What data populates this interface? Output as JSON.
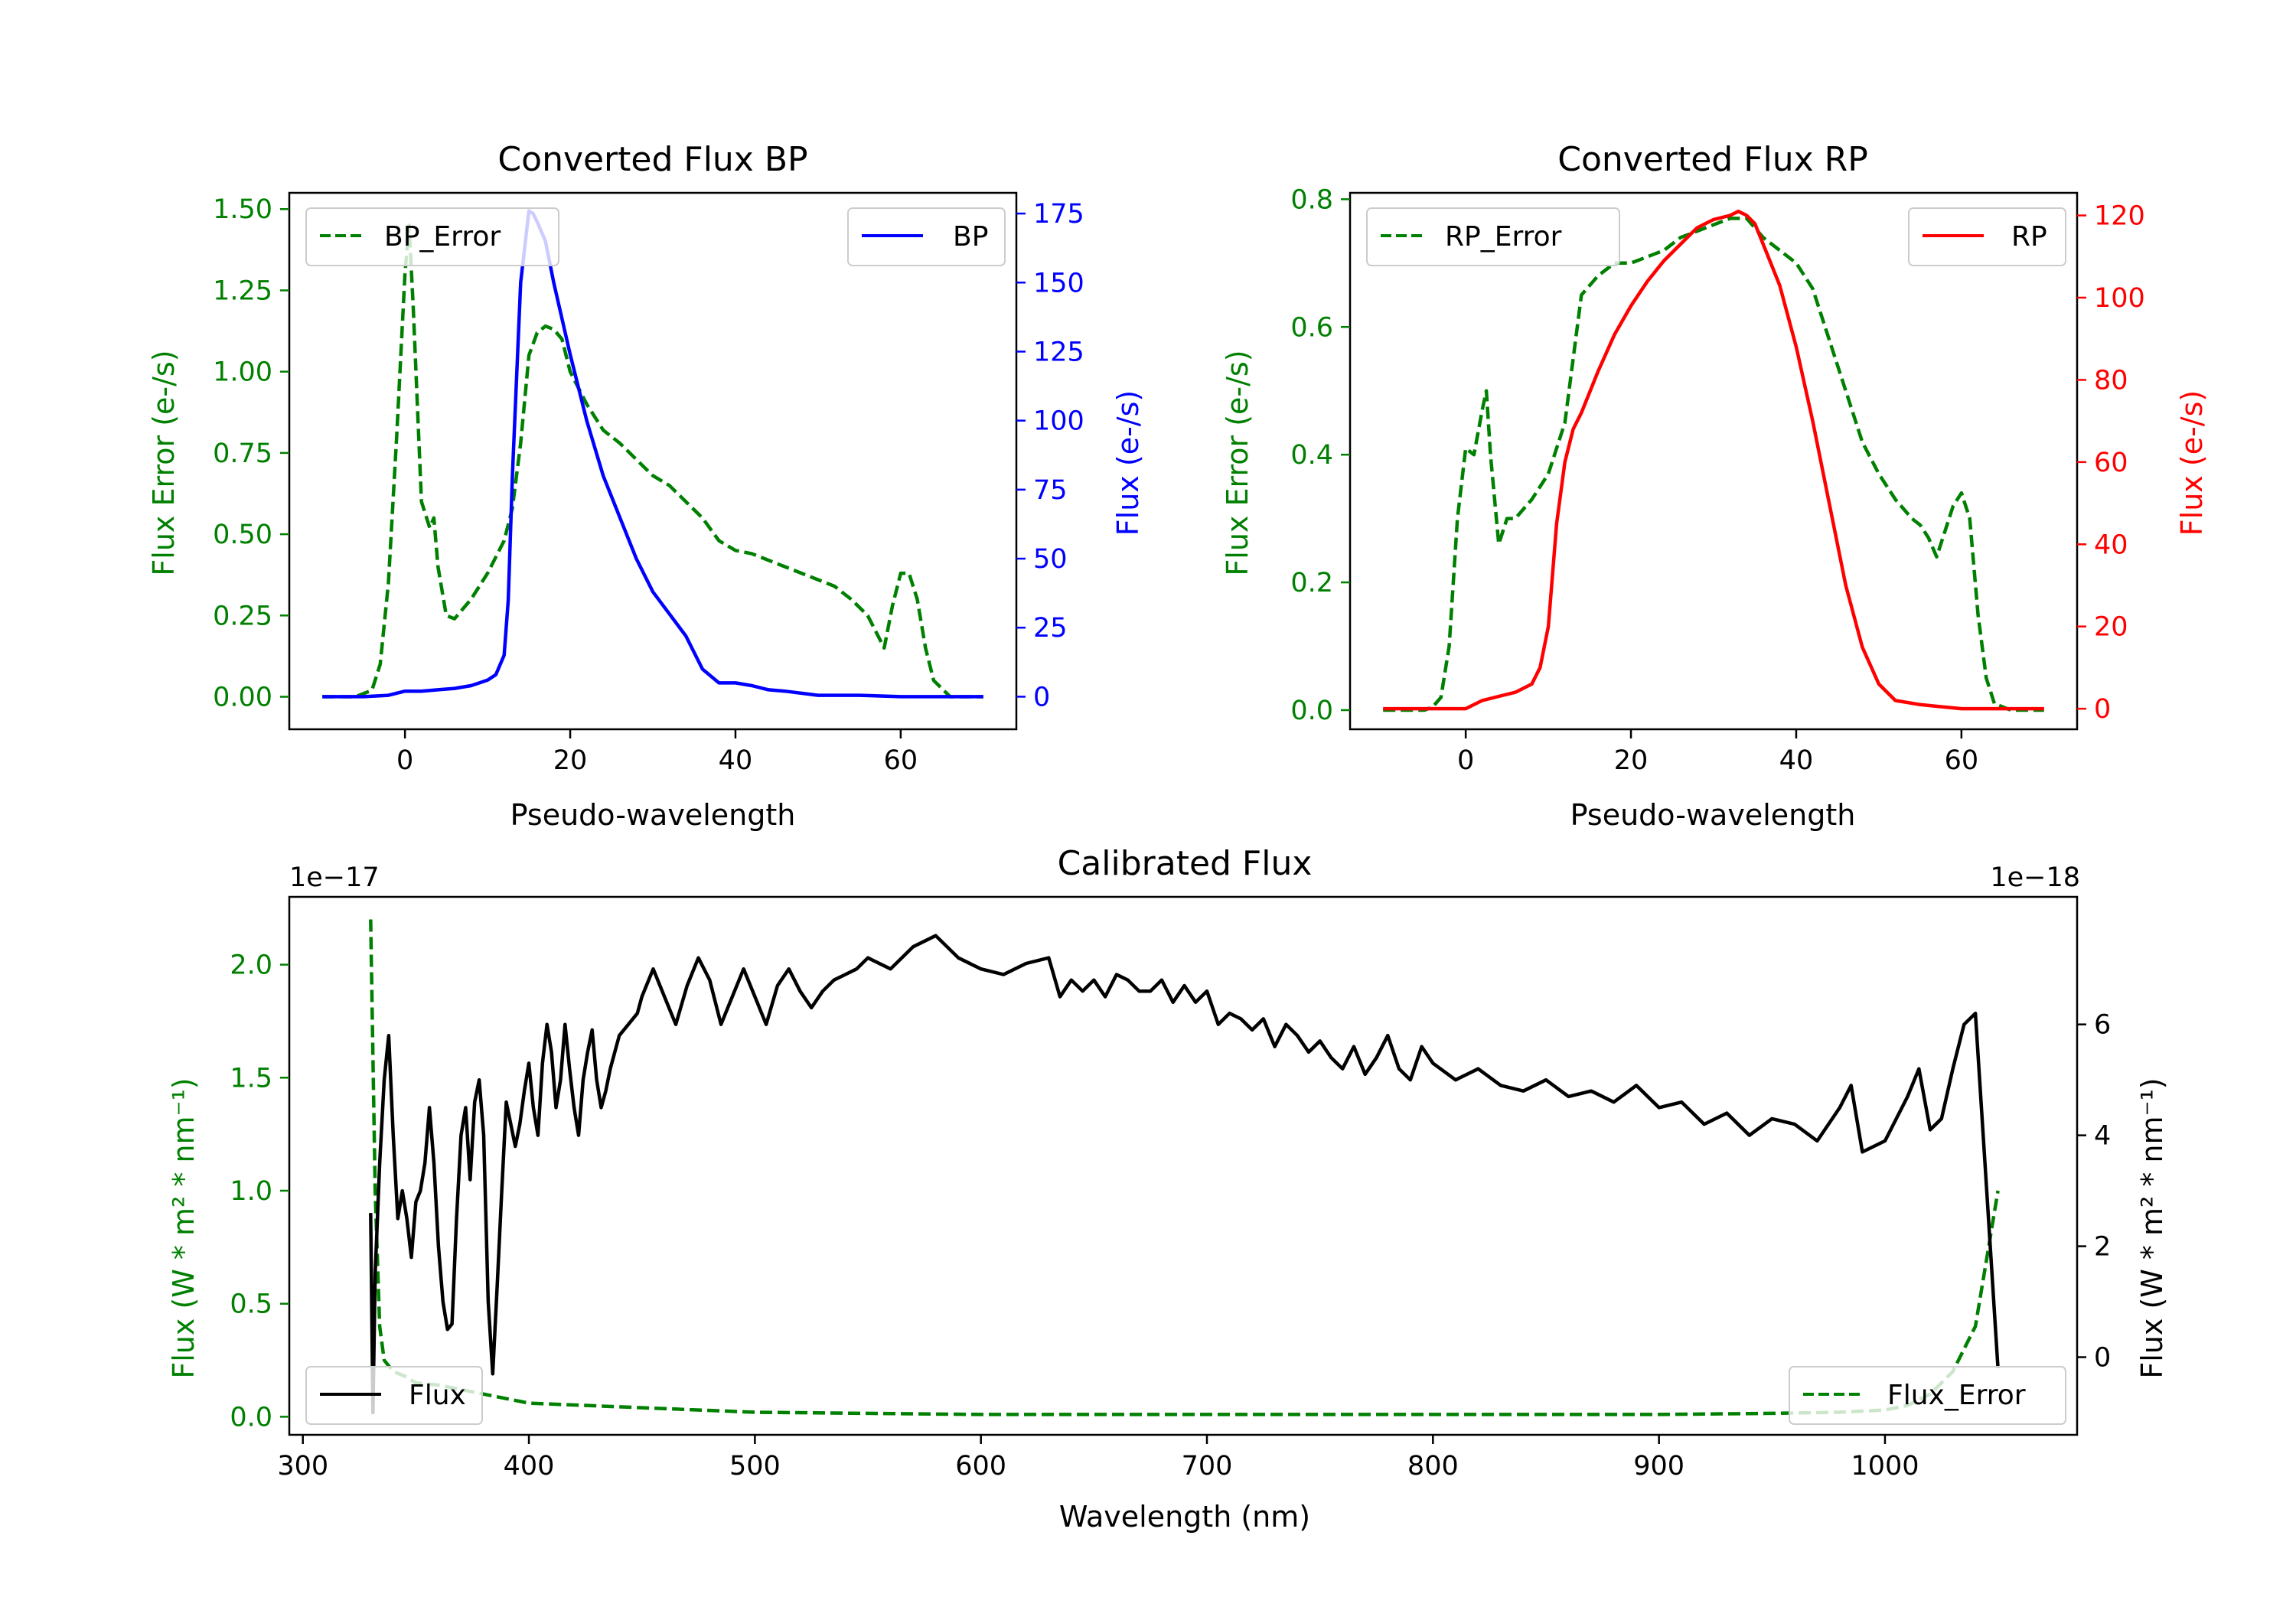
{
  "chart_data": [
    {
      "type": "line",
      "title": "Converted Flux BP",
      "xlabel": "Pseudo-wavelength",
      "ylabel": "Flux Error (e-/s)",
      "ylabel_right": "Flux (e-/s)",
      "xlim": [
        -14,
        74
      ],
      "xticks": [
        0,
        20,
        40,
        60
      ],
      "ylim": [
        -0.1,
        1.55
      ],
      "yticks": [
        0.0,
        0.25,
        0.5,
        0.75,
        1.0,
        1.25,
        1.5
      ],
      "ylim_right": [
        -11.8,
        182.5
      ],
      "yticks_right": [
        0,
        25,
        50,
        75,
        100,
        125,
        150,
        175
      ],
      "left_color": "#008000",
      "right_color": "#0000ff",
      "series": [
        {
          "name": "BP_Error",
          "axis": "left",
          "style": "dashed",
          "color": "#008000",
          "x": [
            -10,
            -6,
            -4,
            -3,
            -2,
            -1,
            0,
            0.5,
            1,
            2,
            3,
            3.5,
            4,
            5,
            6,
            8,
            10,
            12,
            13,
            14,
            15,
            16,
            17,
            18,
            19,
            20,
            22,
            24,
            26,
            28,
            30,
            32,
            34,
            36,
            38,
            40,
            42,
            44,
            46,
            48,
            50,
            52,
            54,
            56,
            57,
            58,
            59,
            60,
            61,
            62,
            63,
            64,
            66,
            70
          ],
          "values": [
            0,
            0,
            0.02,
            0.1,
            0.35,
            0.8,
            1.3,
            1.45,
            1.2,
            0.6,
            0.52,
            0.55,
            0.4,
            0.25,
            0.24,
            0.3,
            0.38,
            0.48,
            0.58,
            0.78,
            1.05,
            1.12,
            1.14,
            1.13,
            1.1,
            1.0,
            0.9,
            0.82,
            0.78,
            0.73,
            0.68,
            0.65,
            0.6,
            0.55,
            0.48,
            0.45,
            0.44,
            0.42,
            0.4,
            0.38,
            0.36,
            0.34,
            0.3,
            0.25,
            0.2,
            0.15,
            0.28,
            0.38,
            0.38,
            0.3,
            0.15,
            0.05,
            0,
            0
          ]
        },
        {
          "name": "BP",
          "axis": "right",
          "style": "solid",
          "color": "#0000ff",
          "x": [
            -10,
            -5,
            -2,
            0,
            2,
            4,
            6,
            8,
            10,
            11,
            12,
            12.5,
            13,
            14,
            15,
            15.5,
            16,
            17,
            18,
            20,
            22,
            24,
            26,
            28,
            30,
            32,
            34,
            36,
            38,
            40,
            42,
            44,
            46,
            50,
            55,
            60,
            65,
            70
          ],
          "values": [
            0,
            0,
            0.5,
            2,
            2,
            2.5,
            3,
            4,
            6,
            8,
            15,
            35,
            80,
            150,
            176,
            175,
            172,
            165,
            150,
            124,
            100,
            80,
            65,
            50,
            38,
            30,
            22,
            10,
            5,
            5,
            4,
            2.5,
            2,
            0.5,
            0.5,
            0,
            0,
            0
          ]
        }
      ]
    },
    {
      "type": "line",
      "title": "Converted Flux RP",
      "xlabel": "Pseudo-wavelength",
      "ylabel": "Flux Error (e-/s)",
      "ylabel_right": "Flux (e-/s)",
      "xlim": [
        -14,
        74
      ],
      "xticks": [
        0,
        20,
        40,
        60
      ],
      "ylim": [
        -0.03,
        0.81
      ],
      "yticks": [
        0.0,
        0.2,
        0.4,
        0.6,
        0.8
      ],
      "ylim_right": [
        -5,
        125.5
      ],
      "yticks_right": [
        0,
        20,
        40,
        60,
        80,
        100,
        120
      ],
      "left_color": "#008000",
      "right_color": "#ff0000",
      "series": [
        {
          "name": "RP_Error",
          "axis": "right_none",
          "style": "dashed",
          "color": "#008000",
          "x": [
            -10,
            -5,
            -4,
            -3,
            -2,
            -1,
            0,
            1,
            2,
            2.5,
            3,
            4,
            5,
            6,
            8,
            10,
            12,
            13,
            14,
            16,
            18,
            20,
            22,
            24,
            26,
            28,
            30,
            32,
            34,
            36,
            38,
            40,
            42,
            44,
            46,
            48,
            50,
            52,
            54,
            55,
            56,
            57,
            58,
            59,
            60,
            61,
            62,
            63,
            64,
            66,
            70
          ],
          "values": [
            0,
            0,
            0.005,
            0.02,
            0.1,
            0.3,
            0.41,
            0.4,
            0.47,
            0.5,
            0.4,
            0.26,
            0.3,
            0.3,
            0.33,
            0.37,
            0.45,
            0.55,
            0.65,
            0.68,
            0.7,
            0.7,
            0.71,
            0.72,
            0.74,
            0.75,
            0.76,
            0.77,
            0.77,
            0.74,
            0.72,
            0.7,
            0.66,
            0.58,
            0.5,
            0.42,
            0.37,
            0.33,
            0.3,
            0.29,
            0.27,
            0.24,
            0.28,
            0.32,
            0.34,
            0.3,
            0.15,
            0.05,
            0.01,
            0,
            0
          ]
        },
        {
          "name": "RP",
          "axis": "right",
          "style": "solid",
          "color": "#ff0000",
          "x": [
            -10,
            -4,
            0,
            2,
            4,
            6,
            8,
            9,
            10,
            11,
            12,
            13,
            14,
            16,
            18,
            20,
            22,
            24,
            26,
            28,
            30,
            32,
            33,
            34,
            35,
            36,
            38,
            40,
            42,
            44,
            46,
            48,
            50,
            52,
            55,
            60,
            65,
            70
          ],
          "values": [
            0,
            0,
            0,
            2,
            3,
            4,
            6,
            10,
            20,
            45,
            60,
            68,
            72,
            82,
            91,
            98,
            104,
            109,
            113,
            117,
            119,
            120,
            121,
            120,
            118,
            113,
            103,
            88,
            70,
            50,
            30,
            15,
            6,
            2,
            1,
            0,
            0,
            0
          ]
        }
      ]
    },
    {
      "type": "line",
      "title": "Calibrated Flux",
      "xlabel": "Wavelength (nm)",
      "ylabel": "Flux (W * m² * nm⁻¹)",
      "ylabel_right": "Flux (W * m² * nm⁻¹)",
      "exp_left": "1e−17",
      "exp_right": "1e−18",
      "xlim": [
        294,
        1085
      ],
      "xticks": [
        300,
        400,
        500,
        600,
        700,
        800,
        900,
        1000
      ],
      "ylim": [
        -0.08,
        2.3
      ],
      "yticks": [
        0.0,
        0.5,
        1.0,
        1.5,
        2.0
      ],
      "ylim_right": [
        -1.4,
        8.3
      ],
      "yticks_right": [
        0,
        2,
        4,
        6
      ],
      "left_color": "#008000",
      "right_color": "#000000",
      "series": [
        {
          "name": "Flux_Error",
          "axis": "left",
          "style": "dashed",
          "color": "#008000",
          "x": [
            330,
            332,
            334,
            336,
            340,
            345,
            350,
            360,
            370,
            380,
            390,
            400,
            450,
            500,
            600,
            700,
            800,
            900,
            950,
            980,
            1000,
            1010,
            1020,
            1030,
            1040,
            1045,
            1050
          ],
          "values": [
            2.2,
            1.0,
            0.4,
            0.25,
            0.2,
            0.18,
            0.15,
            0.14,
            0.12,
            0.1,
            0.08,
            0.06,
            0.04,
            0.02,
            0.01,
            0.01,
            0.01,
            0.01,
            0.015,
            0.02,
            0.03,
            0.05,
            0.1,
            0.2,
            0.4,
            0.7,
            1.0
          ]
        },
        {
          "name": "Flux",
          "axis": "right",
          "style": "solid",
          "color": "#000000",
          "x": [
            330,
            331,
            332,
            334,
            336,
            338,
            340,
            342,
            344,
            346,
            348,
            350,
            352,
            354,
            356,
            358,
            360,
            362,
            364,
            366,
            368,
            370,
            372,
            374,
            376,
            378,
            380,
            382,
            384,
            386,
            388,
            390,
            392,
            394,
            396,
            398,
            400,
            402,
            404,
            406,
            408,
            410,
            412,
            414,
            416,
            418,
            420,
            422,
            424,
            426,
            428,
            430,
            432,
            434,
            436,
            438,
            440,
            442,
            444,
            446,
            448,
            450,
            455,
            460,
            465,
            470,
            475,
            480,
            485,
            490,
            495,
            500,
            505,
            510,
            515,
            520,
            525,
            530,
            535,
            540,
            545,
            550,
            560,
            570,
            580,
            590,
            600,
            610,
            620,
            630,
            635,
            640,
            645,
            650,
            655,
            660,
            665,
            670,
            675,
            680,
            685,
            690,
            695,
            700,
            705,
            710,
            715,
            720,
            725,
            730,
            735,
            740,
            745,
            750,
            755,
            760,
            765,
            770,
            775,
            780,
            785,
            790,
            795,
            800,
            810,
            820,
            830,
            840,
            850,
            860,
            870,
            880,
            890,
            900,
            910,
            920,
            930,
            940,
            950,
            960,
            970,
            980,
            985,
            990,
            1000,
            1010,
            1015,
            1020,
            1025,
            1030,
            1035,
            1040,
            1045,
            1050
          ],
          "values": [
            2.6,
            -1,
            1.5,
            3.5,
            5,
            5.8,
            4,
            2.5,
            3,
            2.5,
            1.8,
            2.8,
            3,
            3.5,
            4.5,
            3.5,
            2,
            1,
            0.5,
            0.6,
            2.5,
            4,
            4.5,
            3.2,
            4.6,
            5,
            4,
            1,
            -0.3,
            1.3,
            3,
            4.6,
            4.2,
            3.8,
            4.2,
            4.8,
            5.3,
            4.5,
            4,
            5.3,
            6,
            5.5,
            4.5,
            5,
            6,
            5.2,
            4.5,
            4,
            5,
            5.5,
            5.9,
            5,
            4.5,
            4.8,
            5.2,
            5.5,
            5.8,
            5.9,
            6,
            6.1,
            6.2,
            6.5,
            7,
            6.5,
            6,
            6.7,
            7.2,
            6.8,
            6.0,
            6.5,
            7.0,
            6.5,
            6.0,
            6.7,
            7.0,
            6.6,
            6.3,
            6.6,
            6.8,
            6.9,
            7.0,
            7.2,
            7.0,
            7.4,
            7.6,
            7.2,
            7.0,
            6.9,
            7.1,
            7.2,
            6.5,
            6.8,
            6.6,
            6.8,
            6.5,
            6.9,
            6.8,
            6.6,
            6.6,
            6.8,
            6.4,
            6.7,
            6.4,
            6.6,
            6.0,
            6.2,
            6.1,
            5.9,
            6.1,
            5.6,
            6.0,
            5.8,
            5.5,
            5.7,
            5.4,
            5.2,
            5.6,
            5.1,
            5.4,
            5.8,
            5.2,
            5.0,
            5.6,
            5.3,
            5.0,
            5.2,
            4.9,
            4.8,
            5.0,
            4.7,
            4.8,
            4.6,
            4.9,
            4.5,
            4.6,
            4.2,
            4.4,
            4.0,
            4.3,
            4.2,
            3.9,
            4.5,
            4.9,
            3.7,
            3.9,
            4.7,
            5.2,
            4.1,
            4.3,
            5.2,
            6.0,
            6.2,
            3.0,
            -0.2
          ]
        }
      ]
    }
  ],
  "legends": {
    "bp_left": "BP_Error",
    "bp_right": "BP",
    "rp_left": "RP_Error",
    "rp_right": "RP",
    "cal_left": "Flux",
    "cal_right": "Flux_Error"
  }
}
